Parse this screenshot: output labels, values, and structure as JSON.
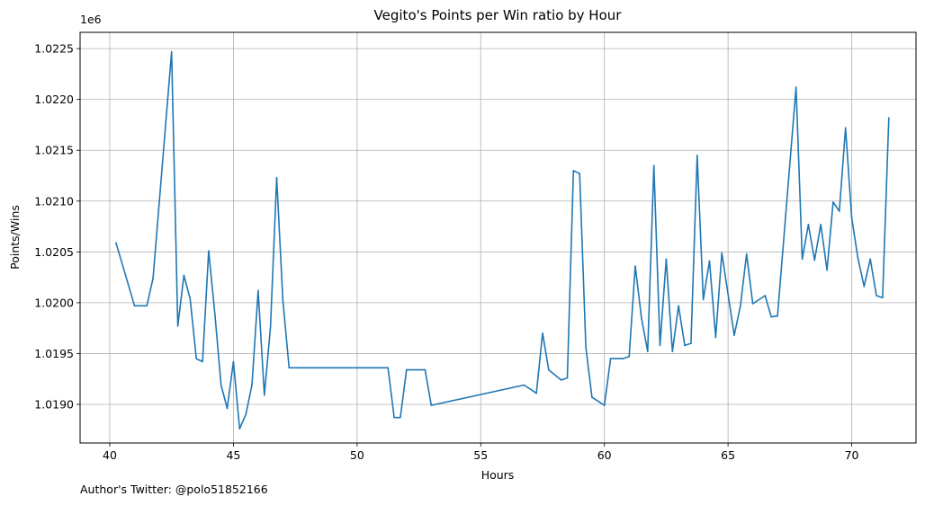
{
  "footer_text": "Author's Twitter: @polo51852166",
  "chart_data": {
    "type": "line",
    "title": "Vegito's Points per Win ratio by Hour",
    "xlabel": "Hours",
    "ylabel": "Points/Wins",
    "y_offset_label": "1e6",
    "xlim": [
      38.8,
      72.6
    ],
    "ylim": [
      1018620,
      1022660
    ],
    "xticks": [
      40,
      45,
      50,
      55,
      60,
      65,
      70
    ],
    "yticks": [
      1019000,
      1019500,
      1020000,
      1020500,
      1021000,
      1021500,
      1022000,
      1022500
    ],
    "ytick_labels": [
      "1.0190",
      "1.0195",
      "1.0200",
      "1.0205",
      "1.0210",
      "1.0215",
      "1.0220",
      "1.0225"
    ],
    "grid": true,
    "line_color": "#1f77b4",
    "series": [
      {
        "x": [
          40.25,
          41.0,
          41.5,
          41.75,
          42.5,
          42.75,
          43.0,
          43.25,
          43.5,
          43.75,
          44.0,
          44.25,
          44.5,
          44.75,
          45.0,
          45.25,
          45.5,
          45.75,
          46.0,
          46.25,
          46.5,
          46.75,
          47.0,
          47.25,
          51.25,
          51.5,
          51.75,
          52.0,
          52.75,
          53.0,
          56.75,
          57.25,
          57.5,
          57.75,
          58.25,
          58.5,
          58.75,
          59.0,
          59.25,
          59.5,
          60.0,
          60.25,
          60.75,
          61.0,
          61.25,
          61.5,
          61.75,
          62.0,
          62.25,
          62.5,
          62.75,
          63.0,
          63.25,
          63.5,
          63.75,
          64.0,
          64.25,
          64.5,
          64.75,
          65.25,
          65.5,
          65.75,
          66.0,
          66.5,
          66.75,
          67.0,
          67.75,
          68.0,
          68.25,
          68.5,
          68.75,
          69.0,
          69.25,
          69.5,
          69.75,
          70.0,
          70.25,
          70.5,
          70.75,
          71.0,
          71.25,
          71.5
        ],
        "y": [
          1020590,
          1019970,
          1019970,
          1020240,
          1022470,
          1019770,
          1020270,
          1020040,
          1019450,
          1019420,
          1020510,
          1019890,
          1019190,
          1018960,
          1019420,
          1018760,
          1018900,
          1019190,
          1020120,
          1019090,
          1019760,
          1021230,
          1020020,
          1019360,
          1019360,
          1018870,
          1018870,
          1019340,
          1019340,
          1018990,
          1019190,
          1019110,
          1019700,
          1019340,
          1019240,
          1019260,
          1021300,
          1021270,
          1019560,
          1019070,
          1018990,
          1019450,
          1019450,
          1019470,
          1020360,
          1019850,
          1019520,
          1021350,
          1019580,
          1020430,
          1019520,
          1019970,
          1019580,
          1019600,
          1021450,
          1020030,
          1020410,
          1019660,
          1020490,
          1019680,
          1019970,
          1020480,
          1019990,
          1020070,
          1019860,
          1019870,
          1022120,
          1020430,
          1020770,
          1020420,
          1020770,
          1020320,
          1020990,
          1020900,
          1021720,
          1020840,
          1020440,
          1020160,
          1020430,
          1020070,
          1020050,
          1021820
        ]
      }
    ]
  }
}
